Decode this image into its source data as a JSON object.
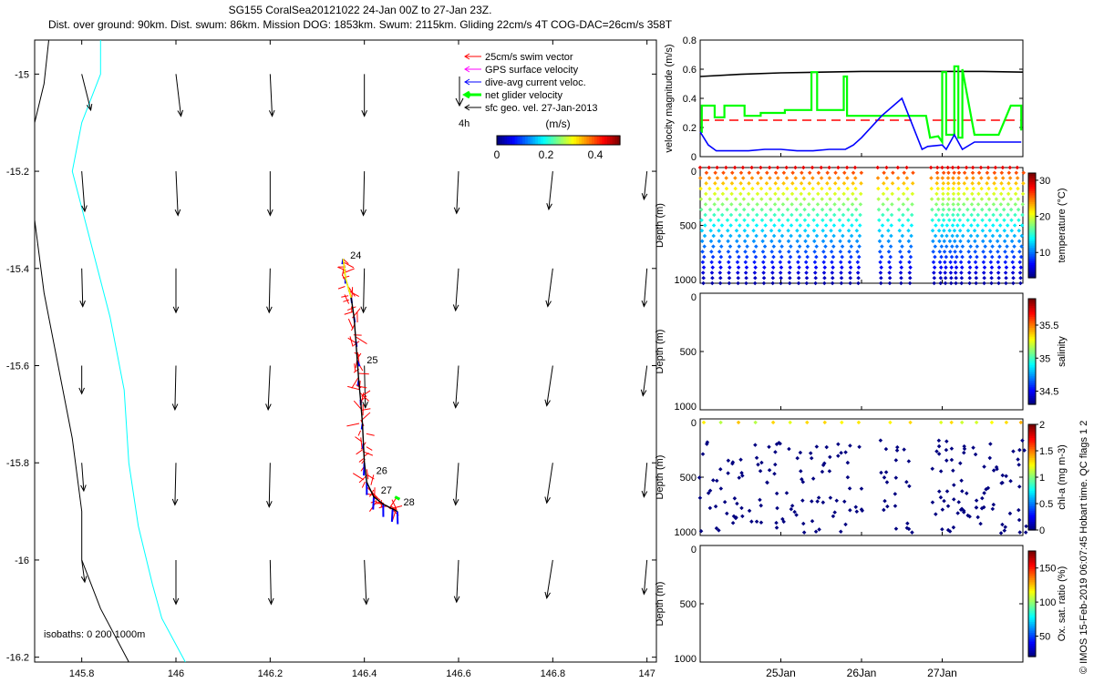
{
  "title": {
    "line1": "SG155 CoralSea20121022 24-Jan 00Z to 27-Jan 23Z.",
    "line2": "Dist. over ground: 90km. Dist. swum: 86km. Mission DOG: 1853km. Swum: 2115km. Gliding 22cm/s 4T COG-DAC=26cm/s 358T"
  },
  "copyright": "© IMOS 15-Feb-2019 06:07:45 Hobart time. QC flags 1  2",
  "colors": {
    "swim": "#ff0000",
    "gps": "#ff00ff",
    "dac": "#0000ff",
    "net": "#00ff00",
    "geo": "#000000",
    "isobath0": "#000000",
    "isobath200": "#00ffff"
  },
  "chart_data": [
    {
      "id": "map",
      "type": "scatter",
      "xlim": [
        145.7,
        147.02
      ],
      "ylim": [
        -16.21,
        -14.93
      ],
      "xticks": [
        "145.8",
        "146",
        "146.2",
        "146.4",
        "146.6",
        "146.8",
        "147"
      ],
      "yticks": [
        "-15",
        "-15.2",
        "-15.4",
        "-15.6",
        "-15.8",
        "-16",
        "-16.2"
      ],
      "legend": {
        "placement": "top-right",
        "entries": [
          "25cm/s swim vector",
          "GPS surface velocity",
          "dive-avg current veloc.",
          "net glider velocity",
          "sfc geo. vel. 27-Jan-2013"
        ]
      },
      "scale_label": "4h",
      "colorbar": {
        "label": "(m/s)",
        "ticks": [
          "0",
          "0.2",
          "0.4"
        ],
        "range": [
          0,
          0.5
        ]
      },
      "isobath_label": "isobaths: 0   200  1000m",
      "day_labels": [
        {
          "text": "24",
          "lon": 146.37,
          "lat": -15.38
        },
        {
          "text": "25",
          "lon": 146.405,
          "lat": -15.595
        },
        {
          "text": "26",
          "lon": 146.425,
          "lat": -15.823
        },
        {
          "text": "27",
          "lon": 146.435,
          "lat": -15.863
        },
        {
          "text": "28",
          "lon": 146.483,
          "lat": -15.888
        }
      ],
      "track": [
        [
          146.355,
          -15.38
        ],
        [
          146.36,
          -15.42
        ],
        [
          146.372,
          -15.46
        ],
        [
          146.378,
          -15.5
        ],
        [
          146.382,
          -15.55
        ],
        [
          146.385,
          -15.59
        ],
        [
          146.388,
          -15.63
        ],
        [
          146.392,
          -15.67
        ],
        [
          146.396,
          -15.72
        ],
        [
          146.398,
          -15.76
        ],
        [
          146.4,
          -15.8
        ],
        [
          146.405,
          -15.84
        ],
        [
          146.42,
          -15.87
        ],
        [
          146.44,
          -15.885
        ],
        [
          146.46,
          -15.895
        ],
        [
          146.47,
          -15.9
        ]
      ],
      "isobath_0": [
        [
          145.73,
          -14.93
        ],
        [
          145.72,
          -15.02
        ],
        [
          145.7,
          -15.1
        ],
        [
          145.7,
          -15.3
        ],
        [
          145.72,
          -15.45
        ],
        [
          145.75,
          -15.6
        ],
        [
          145.78,
          -15.75
        ],
        [
          145.8,
          -15.9
        ],
        [
          145.8,
          -16.0
        ],
        [
          145.84,
          -16.1
        ],
        [
          145.9,
          -16.21
        ]
      ],
      "isobath_200": [
        [
          145.84,
          -14.93
        ],
        [
          145.84,
          -15.0
        ],
        [
          145.8,
          -15.1
        ],
        [
          145.78,
          -15.2
        ],
        [
          145.82,
          -15.35
        ],
        [
          145.86,
          -15.5
        ],
        [
          145.89,
          -15.65
        ],
        [
          145.9,
          -15.8
        ],
        [
          145.92,
          -15.93
        ],
        [
          145.95,
          -16.05
        ],
        [
          145.97,
          -16.12
        ],
        [
          146.02,
          -16.21
        ]
      ],
      "geo_vectors": [
        {
          "lon": 145.8,
          "lat": -15.0,
          "u": 0.09,
          "v": -0.36
        },
        {
          "lon": 146.0,
          "lat": -15.0,
          "u": 0.05,
          "v": -0.42
        },
        {
          "lon": 146.2,
          "lat": -15.0,
          "u": 0.02,
          "v": -0.42
        },
        {
          "lon": 146.4,
          "lat": -15.0,
          "u": 0.0,
          "v": -0.42
        },
        {
          "lon": 145.8,
          "lat": -15.2,
          "u": 0.03,
          "v": -0.4
        },
        {
          "lon": 146.0,
          "lat": -15.2,
          "u": 0.02,
          "v": -0.44
        },
        {
          "lon": 146.2,
          "lat": -15.2,
          "u": 0.0,
          "v": -0.44
        },
        {
          "lon": 146.4,
          "lat": -15.2,
          "u": -0.01,
          "v": -0.44
        },
        {
          "lon": 146.6,
          "lat": -15.2,
          "u": -0.02,
          "v": -0.42
        },
        {
          "lon": 146.8,
          "lat": -15.2,
          "u": -0.04,
          "v": -0.38
        },
        {
          "lon": 147.0,
          "lat": -15.2,
          "u": -0.03,
          "v": -0.28
        },
        {
          "lon": 145.8,
          "lat": -15.4,
          "u": 0.01,
          "v": -0.38
        },
        {
          "lon": 146.0,
          "lat": -15.4,
          "u": 0.0,
          "v": -0.44
        },
        {
          "lon": 146.2,
          "lat": -15.4,
          "u": -0.01,
          "v": -0.44
        },
        {
          "lon": 146.4,
          "lat": -15.4,
          "u": -0.01,
          "v": -0.44
        },
        {
          "lon": 146.6,
          "lat": -15.4,
          "u": -0.03,
          "v": -0.42
        },
        {
          "lon": 146.8,
          "lat": -15.4,
          "u": -0.05,
          "v": -0.38
        },
        {
          "lon": 147.0,
          "lat": -15.4,
          "u": -0.03,
          "v": -0.38
        },
        {
          "lon": 145.8,
          "lat": -15.6,
          "u": 0.0,
          "v": -0.28
        },
        {
          "lon": 146.0,
          "lat": -15.6,
          "u": -0.01,
          "v": -0.44
        },
        {
          "lon": 146.2,
          "lat": -15.6,
          "u": -0.02,
          "v": -0.44
        },
        {
          "lon": 146.4,
          "lat": -15.6,
          "u": 0.01,
          "v": -0.42
        },
        {
          "lon": 146.6,
          "lat": -15.6,
          "u": -0.03,
          "v": -0.42
        },
        {
          "lon": 146.8,
          "lat": -15.6,
          "u": -0.06,
          "v": -0.4
        },
        {
          "lon": 147.0,
          "lat": -15.6,
          "u": -0.04,
          "v": -0.3
        },
        {
          "lon": 145.8,
          "lat": -15.8,
          "u": 0.02,
          "v": -0.28
        },
        {
          "lon": 146.0,
          "lat": -15.8,
          "u": -0.01,
          "v": -0.42
        },
        {
          "lon": 146.2,
          "lat": -15.8,
          "u": -0.01,
          "v": -0.44
        },
        {
          "lon": 146.6,
          "lat": -15.8,
          "u": -0.03,
          "v": -0.42
        },
        {
          "lon": 146.8,
          "lat": -15.8,
          "u": -0.06,
          "v": -0.4
        },
        {
          "lon": 147.0,
          "lat": -15.8,
          "u": -0.03,
          "v": -0.34
        },
        {
          "lon": 145.8,
          "lat": -16.0,
          "u": 0.03,
          "v": -0.22
        },
        {
          "lon": 146.0,
          "lat": -16.0,
          "u": 0.0,
          "v": -0.44
        },
        {
          "lon": 146.2,
          "lat": -16.0,
          "u": 0.01,
          "v": -0.44
        },
        {
          "lon": 146.4,
          "lat": -16.0,
          "u": 0.02,
          "v": -0.44
        },
        {
          "lon": 146.6,
          "lat": -16.0,
          "u": -0.02,
          "v": -0.42
        },
        {
          "lon": 146.8,
          "lat": -16.0,
          "u": -0.06,
          "v": -0.38
        },
        {
          "lon": 147.0,
          "lat": -16.0,
          "u": -0.03,
          "v": -0.34
        }
      ]
    },
    {
      "id": "velocity",
      "type": "line",
      "ylabel": "velocity magnitude (m/s)",
      "ylim": [
        0,
        0.8
      ],
      "yticks": [
        "0",
        "0.2",
        "0.4",
        "0.6",
        "0.8"
      ],
      "xlim": [
        24.0,
        28.0
      ],
      "series": [
        {
          "color": "#000000",
          "style": "solid",
          "x": [
            24.0,
            24.5,
            25.0,
            25.5,
            26.0,
            26.5,
            27.0,
            27.5,
            28.0
          ],
          "y": [
            0.55,
            0.565,
            0.575,
            0.58,
            0.585,
            0.585,
            0.585,
            0.585,
            0.58
          ]
        },
        {
          "color": "#ff0000",
          "style": "dashed",
          "x": [
            24.0,
            26.62,
            null,
            26.88,
            27.98
          ],
          "y": [
            0.25,
            0.25,
            null,
            0.25,
            0.25
          ]
        },
        {
          "color": "#00ff00",
          "style": "solid",
          "x": [
            24.0,
            24.02,
            24.02,
            24.18,
            24.18,
            24.3,
            24.3,
            24.55,
            24.55,
            24.75,
            24.75,
            24.8,
            24.8,
            25.05,
            25.05,
            25.38,
            25.38,
            25.45,
            25.45,
            25.78,
            25.78,
            25.82,
            25.82,
            26.8,
            26.85,
            26.95,
            27.0,
            27.0,
            27.05,
            27.05,
            27.15,
            27.15,
            27.2,
            27.2,
            27.25,
            27.25,
            27.4,
            27.7,
            27.85,
            27.85,
            27.98,
            27.98
          ],
          "y": [
            0.17,
            0.17,
            0.35,
            0.35,
            0.27,
            0.27,
            0.35,
            0.35,
            0.28,
            0.28,
            0.3,
            0.3,
            0.3,
            0.3,
            0.32,
            0.32,
            0.58,
            0.58,
            0.32,
            0.32,
            0.55,
            0.55,
            0.28,
            0.28,
            0.13,
            0.14,
            0.1,
            0.58,
            0.58,
            0.15,
            0.15,
            0.62,
            0.62,
            0.13,
            0.13,
            0.6,
            0.15,
            0.15,
            0.35,
            0.35,
            0.35,
            0.18
          ]
        },
        {
          "color": "#0000ff",
          "style": "solid",
          "x": [
            24.0,
            24.1,
            24.2,
            24.4,
            24.6,
            24.8,
            25.0,
            25.2,
            25.4,
            25.6,
            25.8,
            25.9,
            26.0,
            26.25,
            26.5,
            26.75,
            26.82,
            27.0,
            27.05,
            27.15,
            27.25,
            27.4,
            27.6,
            27.8,
            27.98
          ],
          "y": [
            0.17,
            0.08,
            0.04,
            0.04,
            0.04,
            0.05,
            0.05,
            0.04,
            0.04,
            0.05,
            0.05,
            0.08,
            0.13,
            0.28,
            0.4,
            0.05,
            0.07,
            0.08,
            0.05,
            0.15,
            0.05,
            0.1,
            0.1,
            0.1,
            0.1
          ]
        }
      ]
    },
    {
      "id": "temperature",
      "type": "scatter",
      "ylabel": "Depth (m)",
      "ylim": [
        0,
        1000
      ],
      "yticks": [
        "0",
        "500",
        "1000"
      ],
      "cbar_label": "temperature (°C)",
      "cbar_ticks": [
        "10",
        "20",
        "30"
      ],
      "cbar_range": [
        3,
        32
      ],
      "dives": [
        24.0,
        24.11,
        24.21,
        24.32,
        24.43,
        24.53,
        24.64,
        24.75,
        24.86,
        24.96,
        25.07,
        25.18,
        25.28,
        25.39,
        25.5,
        25.6,
        25.71,
        25.82,
        25.92,
        26.2,
        26.31,
        26.45,
        26.56,
        26.86,
        26.94,
        27.0,
        27.07,
        27.13,
        27.2,
        27.3,
        27.38,
        27.48,
        27.57,
        27.66,
        27.75,
        27.84,
        27.93
      ]
    },
    {
      "id": "salinity",
      "type": "scatter",
      "ylabel": "Depth (m)",
      "ylim": [
        0,
        1000
      ],
      "yticks": [
        "0",
        "500",
        "1000"
      ],
      "cbar_label": "salinity",
      "cbar_ticks": [
        "34.5",
        "35",
        "35.5"
      ],
      "cbar_range": [
        34.3,
        35.9
      ]
    },
    {
      "id": "chla",
      "type": "scatter",
      "ylabel": "Depth (m)",
      "ylim": [
        0,
        1000
      ],
      "yticks": [
        "0",
        "500",
        "1000"
      ],
      "cbar_label": "chl-a (mg m-3)",
      "cbar_ticks": [
        "0",
        "0.5",
        "1",
        "1.5",
        "2"
      ],
      "cbar_range": [
        0,
        2
      ],
      "dives": [
        24.0,
        24.11,
        24.21,
        24.32,
        24.43,
        24.53,
        24.64,
        24.75,
        24.86,
        24.96,
        25.07,
        25.18,
        25.28,
        25.39,
        25.5,
        25.6,
        25.71,
        25.82,
        25.92,
        26.2,
        26.31,
        26.45,
        26.56,
        26.86,
        26.94,
        27.0,
        27.07,
        27.13,
        27.2,
        27.3,
        27.38,
        27.48,
        27.57,
        27.66,
        27.75,
        27.84,
        27.93
      ]
    },
    {
      "id": "oxygen",
      "type": "scatter",
      "ylabel": "Depth (m)",
      "ylim": [
        0,
        1000
      ],
      "yticks": [
        "0",
        "500",
        "1000"
      ],
      "xticks": [
        "25Jan",
        "26Jan",
        "27Jan"
      ],
      "xlim": [
        24.0,
        28.0
      ],
      "cbar_label": "Ox. sat. ratio (%)",
      "cbar_ticks": [
        "50",
        "100",
        "150"
      ],
      "cbar_range": [
        20,
        175
      ]
    }
  ]
}
